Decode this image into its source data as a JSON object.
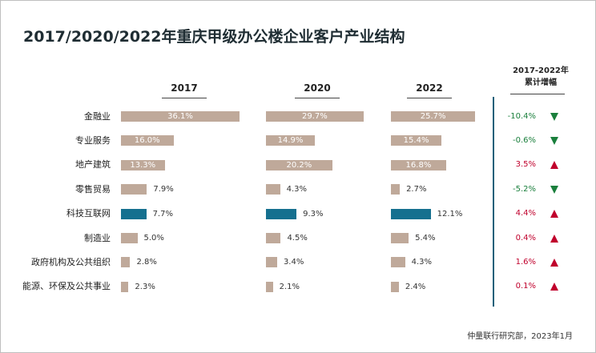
{
  "title": "2017/2020/2022年重庆甲级办公楼企业客户产业结构",
  "source": "仲量联行研究部，2023年1月",
  "change_header": [
    "2017-2022年",
    "累计增幅"
  ],
  "colors": {
    "bar_default": "#bfa99a",
    "bar_highlight": "#15708f",
    "up": "#c0002c",
    "down": "#1a7f3c",
    "divider": "#17607a"
  },
  "chart_data": {
    "type": "bar",
    "orientation": "horizontal",
    "title": "2017/2020/2022年重庆甲级办公楼企业客户产业结构",
    "categories": [
      "金融业",
      "专业服务",
      "地产建筑",
      "零售贸易",
      "科技互联网",
      "制造业",
      "政府机构及公共组织",
      "能源、环保及公共事业"
    ],
    "highlight_category": "科技互联网",
    "series": [
      {
        "name": "2017",
        "values": [
          36.1,
          16.0,
          13.3,
          7.9,
          7.7,
          5.0,
          2.8,
          2.3
        ],
        "labels": [
          "36.1%",
          "16.0%",
          "13.3%",
          "7.9%",
          "7.7%",
          "5.0%",
          "2.8%",
          "2.3%"
        ]
      },
      {
        "name": "2020",
        "values": [
          29.7,
          14.9,
          20.2,
          4.3,
          9.3,
          4.5,
          3.4,
          2.1
        ],
        "labels": [
          "29.7%",
          "14.9%",
          "20.2%",
          "4.3%",
          "9.3%",
          "4.5%",
          "3.4%",
          "2.1%"
        ]
      },
      {
        "name": "2022",
        "values": [
          25.7,
          15.4,
          16.8,
          2.7,
          12.1,
          5.4,
          4.3,
          2.4
        ],
        "labels": [
          "25.7%",
          "15.4%",
          "16.8%",
          "2.7%",
          "12.1%",
          "5.4%",
          "4.3%",
          "2.4%"
        ]
      }
    ],
    "change": {
      "values": [
        -10.4,
        -0.6,
        3.5,
        -5.2,
        4.4,
        0.4,
        1.6,
        0.1
      ],
      "labels": [
        "-10.4%",
        "-0.6%",
        "3.5%",
        "-5.2%",
        "4.4%",
        "0.4%",
        "1.6%",
        "0.1%"
      ],
      "direction": [
        "down",
        "down",
        "up",
        "down",
        "up",
        "up",
        "up",
        "up"
      ]
    }
  }
}
